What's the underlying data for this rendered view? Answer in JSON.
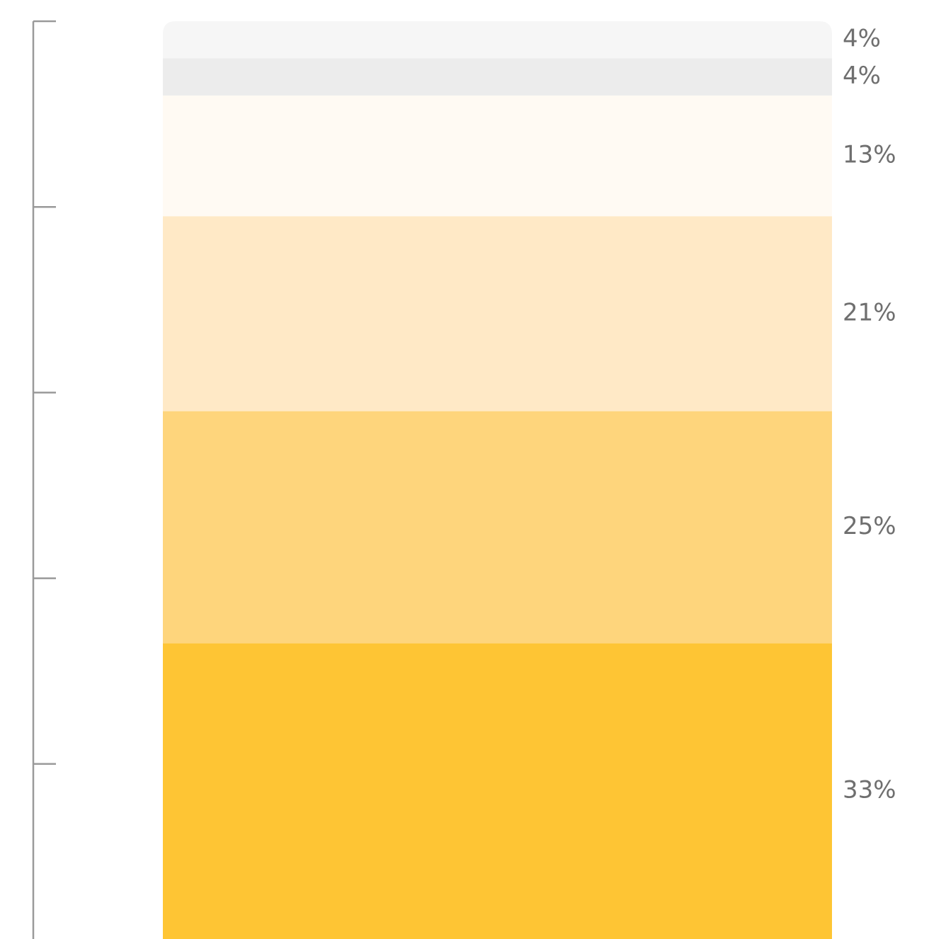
{
  "chart_data": {
    "type": "bar",
    "orientation": "stacked-vertical",
    "categories": [
      ""
    ],
    "series": [
      {
        "value": 33,
        "label": "33%",
        "color": "#FEC534"
      },
      {
        "value": 25,
        "label": "25%",
        "color": "#FED57C"
      },
      {
        "value": 21,
        "label": "21%",
        "color": "#FFE9C6"
      },
      {
        "value": 13,
        "label": "13%",
        "color": "#FFFAF3"
      },
      {
        "value": 4,
        "label": "4%",
        "color": "#ECECEC"
      },
      {
        "value": 4,
        "label": "4%",
        "color": "#F6F6F6"
      }
    ],
    "ylim": [
      0,
      100
    ],
    "yticks": [
      0,
      20,
      40,
      60,
      80,
      100
    ],
    "show_tick_labels": false,
    "grid": false,
    "legend": "none",
    "label_position": "right"
  }
}
